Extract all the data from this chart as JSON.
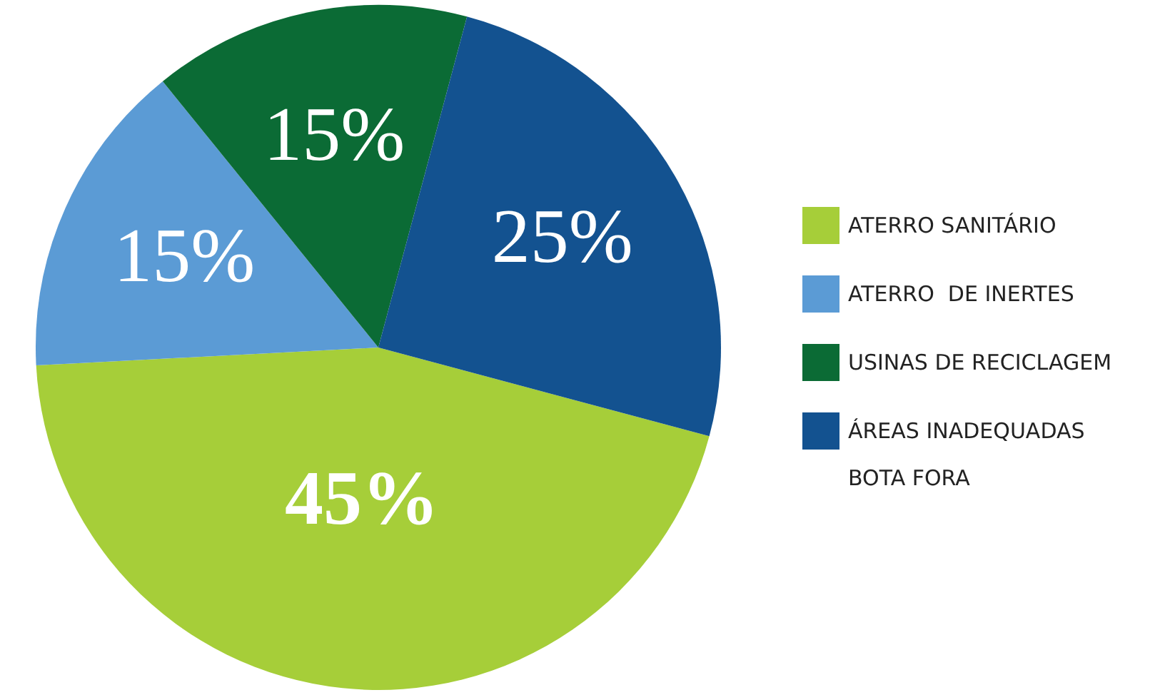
{
  "chart_data": {
    "type": "pie",
    "categories": [
      "ATERRO SANITÁRIO",
      "ATERRO  DE INERTES",
      "USINAS DE RECICLAGEM",
      "ÁREAS INADEQUADAS BOTA FORA"
    ],
    "values": [
      45,
      15,
      15,
      25
    ],
    "colors": [
      "#a6ce39",
      "#5b9bd5",
      "#0b6b35",
      "#135290"
    ],
    "value_labels": [
      "45%",
      "15%",
      "15%",
      "25%"
    ],
    "legend": "right"
  }
}
